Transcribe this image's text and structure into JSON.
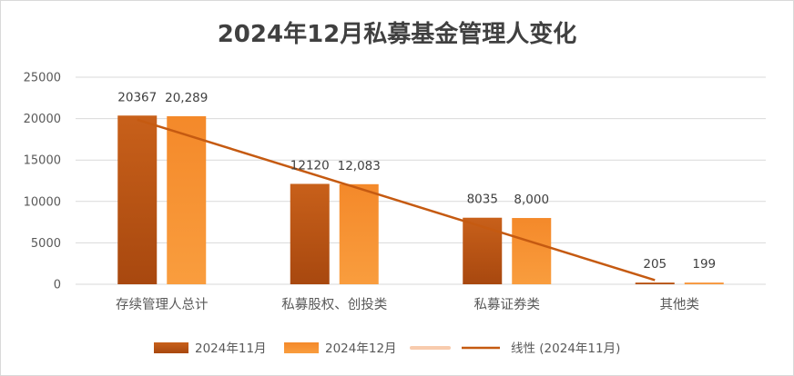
{
  "chart_data": {
    "type": "bar",
    "title": "2024年12月私募基金管理人变化",
    "categories": [
      "存续管理人总计",
      "私募股权、创投类",
      "私募证券类",
      "其他类"
    ],
    "series": [
      {
        "name": "2024年11月",
        "values": [
          20367,
          12120,
          8035,
          205
        ],
        "labels": [
          "20367",
          "12120",
          "8035",
          "205"
        ],
        "color": "#c55a11"
      },
      {
        "name": "2024年12月",
        "values": [
          20289,
          12083,
          8000,
          199
        ],
        "labels": [
          "20,289",
          "12,083",
          "8,000",
          "199"
        ],
        "color": "#f4892a"
      }
    ],
    "trendline": {
      "name": "线性 (2024年11月)",
      "color": "#c55a11",
      "type": "linear"
    },
    "legend_extra_swatch_color": "#f8cbad",
    "y_ticks": [
      "0",
      "5000",
      "10000",
      "15000",
      "20000",
      "25000"
    ],
    "ylim": [
      0,
      25000
    ],
    "grid": true,
    "legend_position": "bottom"
  }
}
